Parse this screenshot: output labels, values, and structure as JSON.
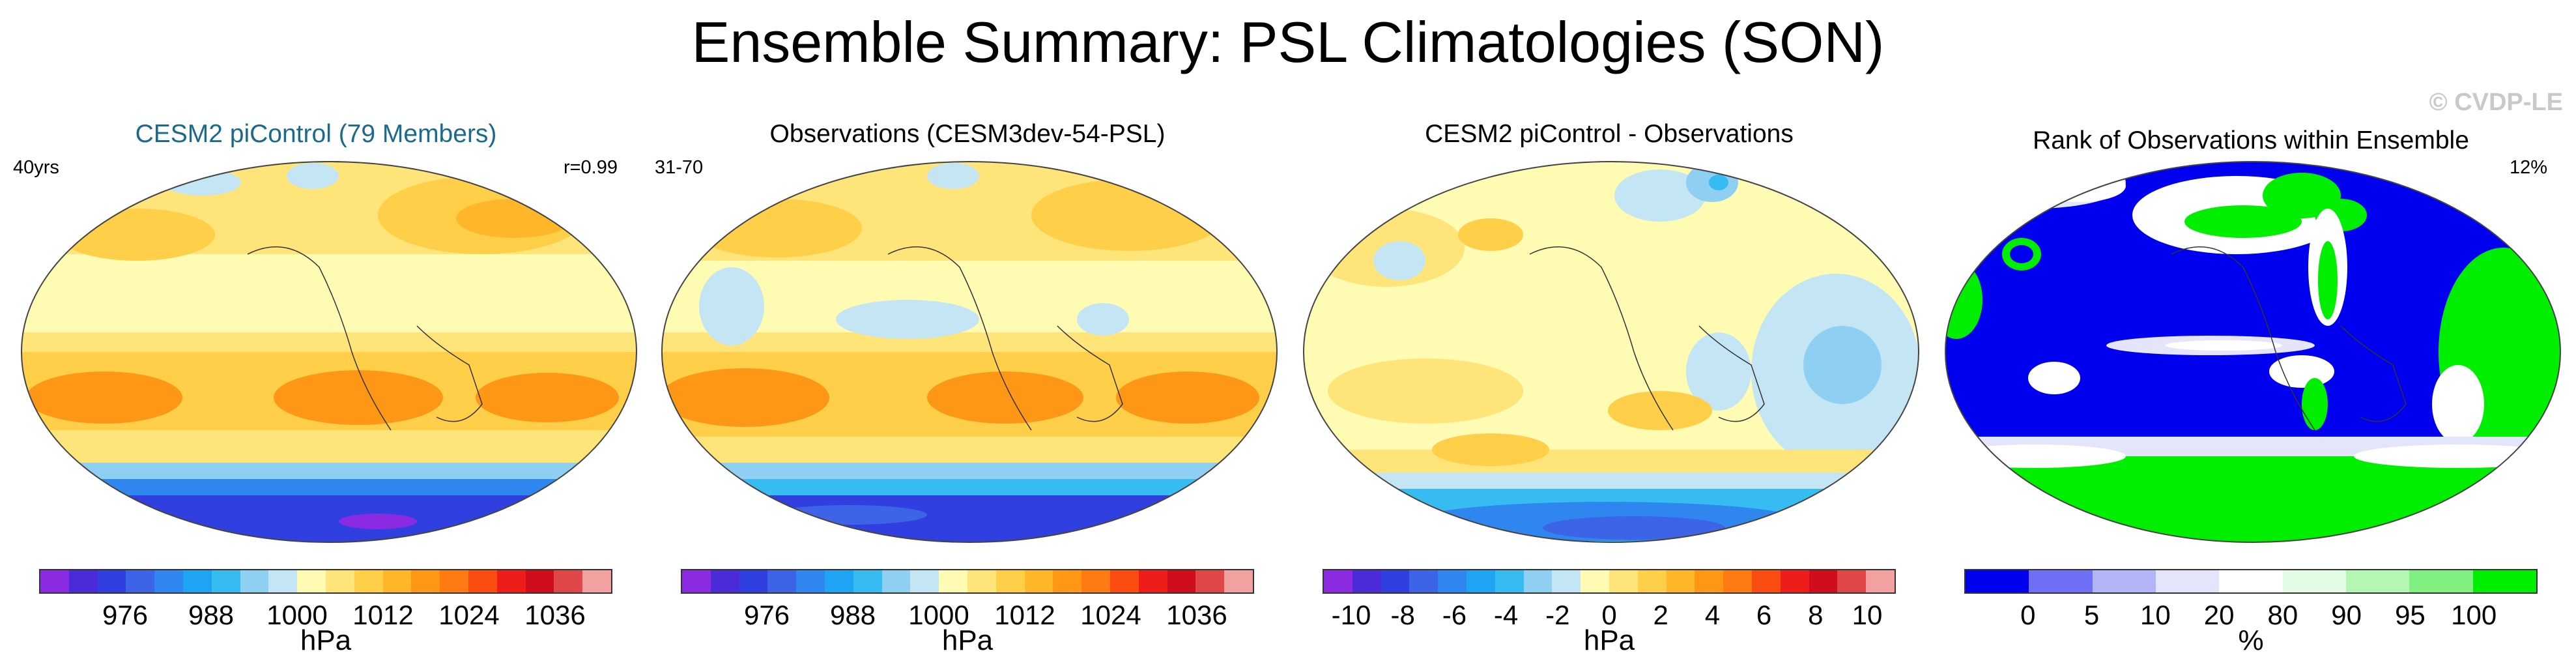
{
  "title": "Ensemble Summary: PSL Climatologies (SON)",
  "watermark": "© CVDP-LE",
  "panels": [
    {
      "title": "CESM2 piControl (79 Members)",
      "title_color": "#1a6a8c",
      "left_note": "40yrs",
      "right_note": "r=0.99",
      "colorbar": {
        "colors": [
          "#8a2be2",
          "#4b2ad8",
          "#2f3fe0",
          "#3d64e6",
          "#2f86ef",
          "#1ea4f3",
          "#37bcf2",
          "#8fd0f2",
          "#c4e6f4",
          "#fffbb2",
          "#ffe47a",
          "#ffcf4a",
          "#ffb628",
          "#ff9716",
          "#ff7a12",
          "#fb4d12",
          "#ee1d1a",
          "#cf0e1c",
          "#e04848",
          "#f3a0a0"
        ],
        "labels": [
          "976",
          "988",
          "1000",
          "1012",
          "1024",
          "1036"
        ],
        "units": "hPa"
      }
    },
    {
      "title": "Observations (CESM3dev-54-PSL)",
      "title_color": "#000000",
      "left_note": "31-70",
      "right_note": "",
      "colorbar": {
        "colors": [
          "#8a2be2",
          "#4b2ad8",
          "#2f3fe0",
          "#3d64e6",
          "#2f86ef",
          "#1ea4f3",
          "#37bcf2",
          "#8fd0f2",
          "#c4e6f4",
          "#fffbb2",
          "#ffe47a",
          "#ffcf4a",
          "#ffb628",
          "#ff9716",
          "#ff7a12",
          "#fb4d12",
          "#ee1d1a",
          "#cf0e1c",
          "#e04848",
          "#f3a0a0"
        ],
        "labels": [
          "976",
          "988",
          "1000",
          "1012",
          "1024",
          "1036"
        ],
        "units": "hPa"
      }
    },
    {
      "title": "CESM2 piControl - Observations",
      "title_color": "#000000",
      "left_note": "",
      "right_note": "",
      "colorbar": {
        "colors": [
          "#8a2be2",
          "#4b2ad8",
          "#2f3fe0",
          "#3d64e6",
          "#2f86ef",
          "#1ea4f3",
          "#37bcf2",
          "#8fd0f2",
          "#c4e6f4",
          "#fffbb2",
          "#ffe47a",
          "#ffcf4a",
          "#ffb628",
          "#ff9716",
          "#ff7a12",
          "#fb4d12",
          "#ee1d1a",
          "#cf0e1c",
          "#e04848",
          "#f3a0a0"
        ],
        "labels": [
          "-10",
          "-8",
          "-6",
          "-4",
          "-2",
          "0",
          "2",
          "4",
          "6",
          "8",
          "10"
        ],
        "units": "hPa"
      }
    },
    {
      "title": "Rank of Observations within Ensemble",
      "title_color": "#000000",
      "left_note": "",
      "right_note": "12%",
      "colorbar": {
        "colors": [
          "#0000ee",
          "#6f6ff5",
          "#b3b3f7",
          "#e4e4fb",
          "#ffffff",
          "#e4fbe4",
          "#b3f7b3",
          "#80f080",
          "#00ee00"
        ],
        "labels": [
          "0",
          "5",
          "10",
          "20",
          "80",
          "90",
          "95",
          "100"
        ],
        "units": "%"
      }
    }
  ]
}
